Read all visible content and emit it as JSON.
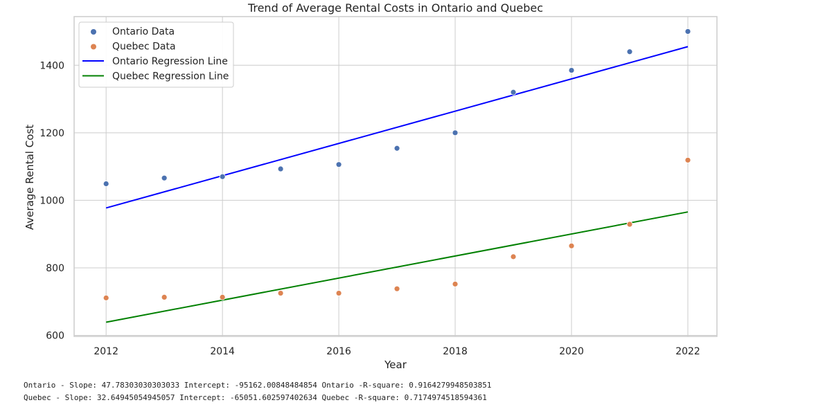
{
  "chart_data": {
    "type": "scatter",
    "title": "Trend of Average Rental Costs in Ontario and Quebec",
    "xlabel": "Year",
    "ylabel": "Average Rental Cost",
    "xlim": [
      2011.45,
      2022.5
    ],
    "ylim": [
      597,
      1544
    ],
    "xticks": [
      2012,
      2014,
      2016,
      2018,
      2020,
      2022
    ],
    "yticks": [
      600,
      800,
      1000,
      1200,
      1400
    ],
    "grid": true,
    "legend_position": "top-left",
    "series": [
      {
        "name": "Ontario Data",
        "kind": "scatter",
        "color": "#4c72b0",
        "x": [
          2012,
          2013,
          2014,
          2015,
          2016,
          2017,
          2018,
          2019,
          2020,
          2021,
          2022
        ],
        "y": [
          1049,
          1066,
          1070,
          1093,
          1106,
          1154,
          1200,
          1320,
          1385,
          1440,
          1500
        ]
      },
      {
        "name": "Quebec Data",
        "kind": "scatter",
        "color": "#dd8452",
        "x": [
          2012,
          2013,
          2014,
          2015,
          2016,
          2017,
          2018,
          2019,
          2020,
          2021,
          2022
        ],
        "y": [
          711,
          713,
          713,
          725,
          725,
          738,
          752,
          833,
          865,
          929,
          1119
        ]
      },
      {
        "name": "Ontario Regression Line",
        "kind": "line",
        "color": "#0000ff",
        "x": [
          2012,
          2022
        ],
        "y": [
          977.3,
          1455.1
        ]
      },
      {
        "name": "Quebec Regression Line",
        "kind": "line",
        "color": "#008000",
        "x": [
          2012,
          2022
        ],
        "y": [
          639.1,
          965.6
        ]
      }
    ]
  },
  "stats": {
    "ontario": "Ontario - Slope: 47.78303030303033 Intercept: -95162.00848484854 Ontario -R-square: 0.9164279948503851",
    "quebec": "Quebec - Slope: 32.64945054945057 Intercept: -65051.602597402634 Quebec -R-square: 0.7174974518594361"
  }
}
